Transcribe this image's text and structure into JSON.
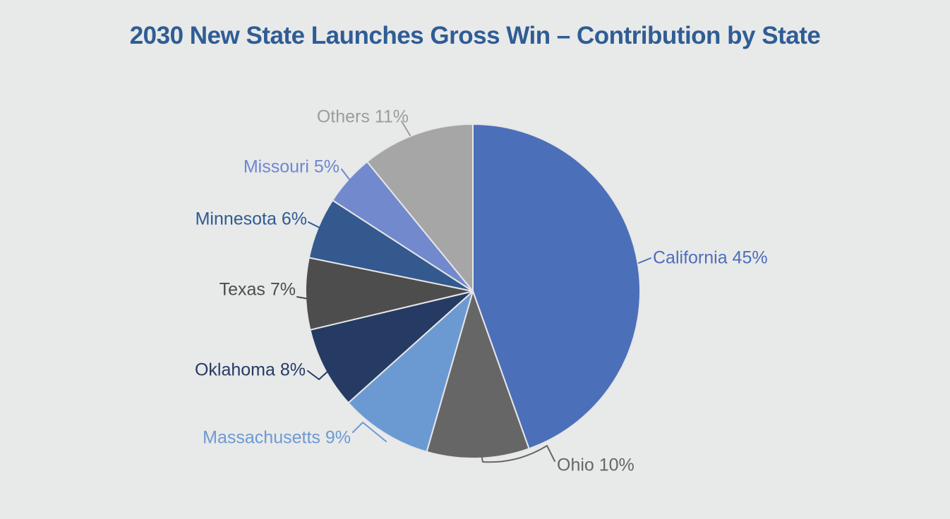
{
  "title": "2030 New State Launches Gross Win – Contribution by State",
  "theme": {
    "background_color": "#E8E9E9",
    "title_color": "#2F5D94",
    "slice_border_color": "#E6E6E6"
  },
  "chart_data": {
    "type": "pie",
    "title": "2030 New State Launches Gross Win – Contribution by State",
    "unit": "%",
    "direction": "clockwise",
    "start_angle_deg": 0,
    "legend": "none",
    "label_style": "outside-with-leader-lines",
    "categories": [
      "California",
      "Ohio",
      "Massachusetts",
      "Oklahoma",
      "Texas",
      "Minnesota",
      "Missouri",
      "Others"
    ],
    "values": [
      45,
      10,
      9,
      8,
      7,
      6,
      5,
      11
    ],
    "labels": [
      "California 45%",
      "Ohio 10%",
      "Massachusetts 9%",
      "Oklahoma 8%",
      "Texas 7%",
      "Minnesota 6%",
      "Missouri 5%",
      "Others 11%"
    ],
    "slice_colors": [
      "#4C6FB9",
      "#666666",
      "#6B9AD3",
      "#253B64",
      "#4D4D4D",
      "#33598E",
      "#7289CE",
      "#A6A6A6"
    ],
    "label_colors": [
      "#4C6FB9",
      "#666666",
      "#6B9AD3",
      "#253B64",
      "#4D4D4D",
      "#2E5A94",
      "#6E87D0",
      "#9C9C9C"
    ]
  }
}
